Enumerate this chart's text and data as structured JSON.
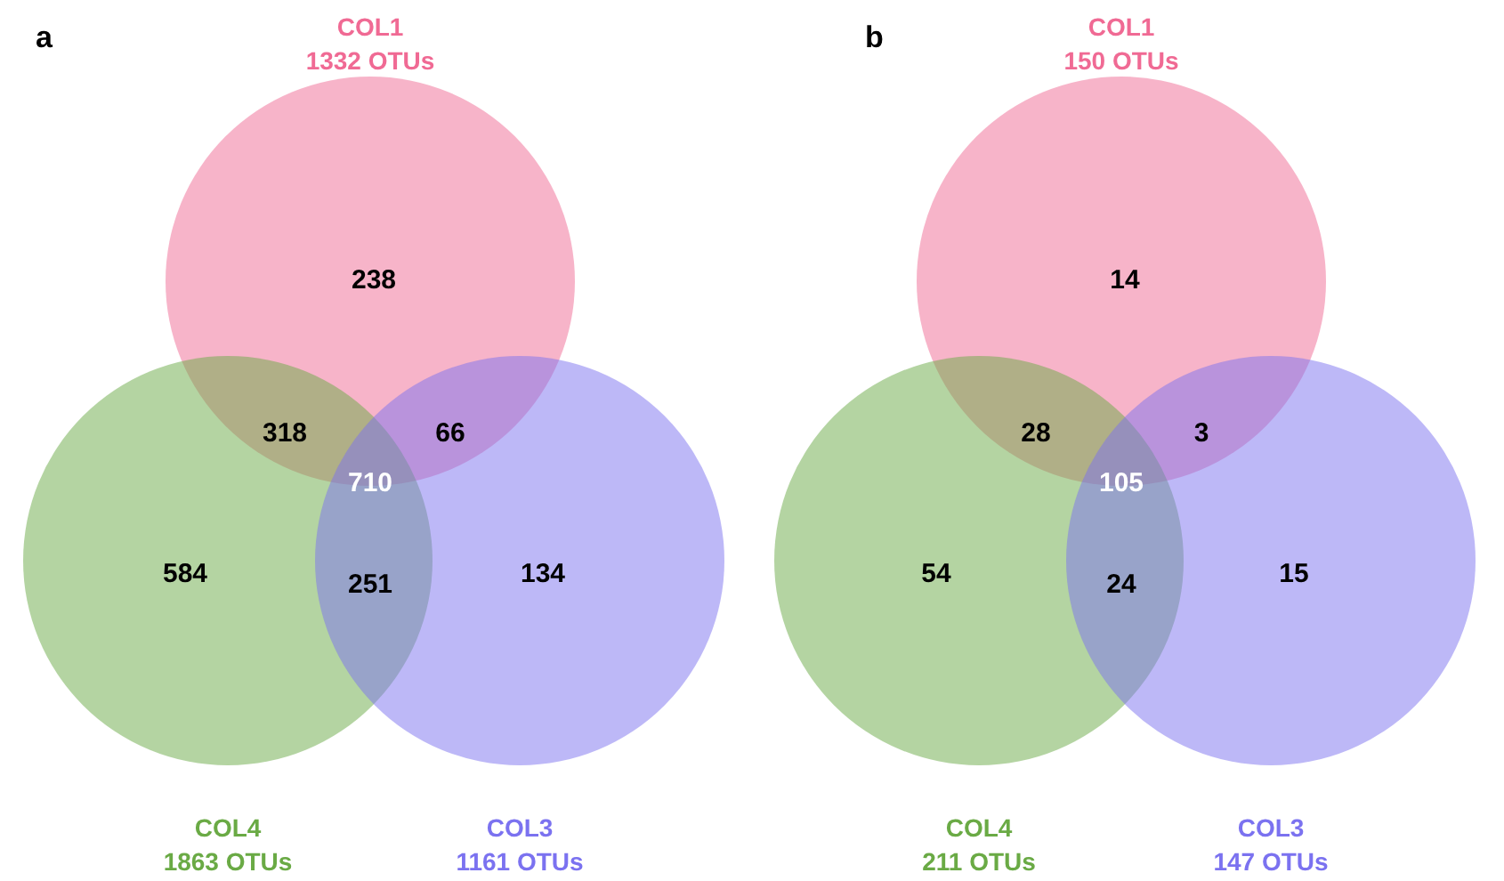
{
  "chart_data": [
    {
      "type": "other",
      "title": "a",
      "categories": [
        "COL1",
        "COL4",
        "COL3"
      ],
      "values": [
        1332,
        1863,
        1161
      ],
      "value_labels": [
        "1332 OTUs",
        "1863 OTUs",
        "1161 OTUs"
      ],
      "colors": [
        "#f06a94",
        "#6aaa45",
        "#7b72f0"
      ],
      "annotations": [
        "238",
        "584",
        "134",
        "318",
        "66",
        "251",
        "710"
      ]
    },
    {
      "type": "other",
      "title": "b",
      "categories": [
        "COL1",
        "COL4",
        "COL3"
      ],
      "values": [
        150,
        211,
        147
      ],
      "value_labels": [
        "150 OTUs",
        "211 OTUs",
        "147 OTUs"
      ],
      "colors": [
        "#f06a94",
        "#6aaa45",
        "#7b72f0"
      ],
      "annotations": [
        "14",
        "54",
        "15",
        "28",
        "3",
        "24",
        "105"
      ]
    }
  ]
}
